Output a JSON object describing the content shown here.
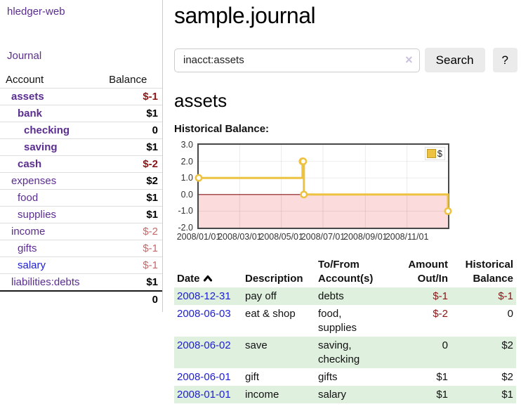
{
  "sidebar": {
    "brand": "hledger-web",
    "nav": {
      "journal": "Journal"
    },
    "accounts": {
      "col_account": "Account",
      "col_balance": "Balance",
      "rows": [
        {
          "name": "assets",
          "balance": "$-1"
        },
        {
          "name": "bank",
          "balance": "$1"
        },
        {
          "name": "checking",
          "balance": "0"
        },
        {
          "name": "saving",
          "balance": "$1"
        },
        {
          "name": "cash",
          "balance": "$-2"
        },
        {
          "name": "expenses",
          "balance": "$2"
        },
        {
          "name": "food",
          "balance": "$1"
        },
        {
          "name": "supplies",
          "balance": "$1"
        },
        {
          "name": "income",
          "balance": "$-2"
        },
        {
          "name": "gifts",
          "balance": "$-1"
        },
        {
          "name": "salary",
          "balance": "$-1"
        },
        {
          "name": "liabilities:debts",
          "balance": "$1"
        }
      ],
      "total": "0"
    }
  },
  "main": {
    "title": "sample.journal",
    "search": {
      "value": "inacct:assets",
      "clear_label": "×",
      "search_button": "Search",
      "help_button": "?"
    },
    "account_heading": "assets",
    "chart_title": "Historical Balance:"
  },
  "chart_data": {
    "type": "line",
    "step": true,
    "title": "Historical Balance",
    "xlim": [
      "2008/01/01",
      "2008/12/31"
    ],
    "ylim": [
      -2,
      3
    ],
    "x_ticks": [
      "2008/01/01",
      "2008/03/01",
      "2008/05/01",
      "2008/07/01",
      "2008/09/01",
      "2008/11/01"
    ],
    "y_ticks": [
      "3.0",
      "2.0",
      "1.0",
      "0.0",
      "-1.0",
      "-2.0"
    ],
    "series": [
      {
        "name": "$",
        "color": "#edc240",
        "points": [
          [
            "2008/01/01",
            1
          ],
          [
            "2008/06/01",
            2
          ],
          [
            "2008/06/02",
            2
          ],
          [
            "2008/06/03",
            0
          ],
          [
            "2008/12/31",
            -1
          ]
        ]
      }
    ],
    "negative_fill": "#fbdbdb",
    "zero_line_color": "#8b1a1a",
    "grid": true,
    "legend_position": "top-right"
  },
  "register": {
    "headers": {
      "date": "Date",
      "description": "Description",
      "accounts": "To/From Account(s)",
      "amount": "Amount Out/In",
      "balance": "Historical Balance"
    },
    "rows": [
      {
        "date": "2008-12-31",
        "description": "pay off",
        "accounts": "debts",
        "amount": "$-1",
        "balance": "$-1"
      },
      {
        "date": "2008-06-03",
        "description": "eat & shop",
        "accounts": "food, supplies",
        "amount": "$-2",
        "balance": "0"
      },
      {
        "date": "2008-06-02",
        "description": "save",
        "accounts": "saving, checking",
        "amount": "0",
        "balance": "$2"
      },
      {
        "date": "2008-06-01",
        "description": "gift",
        "accounts": "gifts",
        "amount": "$1",
        "balance": "$2"
      },
      {
        "date": "2008-01-01",
        "description": "income",
        "accounts": "salary",
        "amount": "$1",
        "balance": "$1"
      }
    ]
  }
}
